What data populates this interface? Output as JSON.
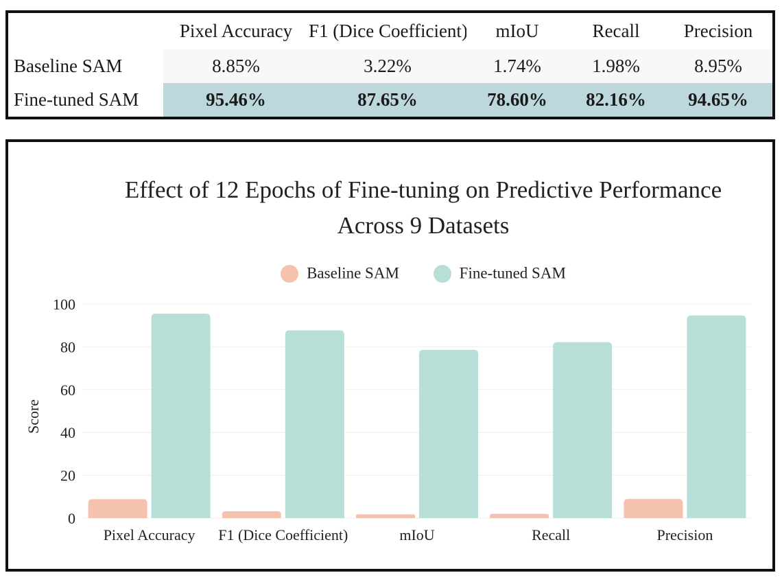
{
  "table": {
    "headers": [
      "",
      "Pixel Accuracy",
      "F1 (Dice Coefficient)",
      "mIoU",
      "Recall",
      "Precision"
    ],
    "rows": [
      {
        "label": "Baseline SAM",
        "values": [
          "8.85%",
          "3.22%",
          "1.74%",
          "1.98%",
          "8.95%"
        ]
      },
      {
        "label": "Fine-tuned SAM",
        "values": [
          "95.46%",
          "87.65%",
          "78.60%",
          "82.16%",
          "94.65%"
        ]
      }
    ],
    "colors": {
      "baseline_row": "#f7f8f9",
      "finetuned_row": "#bcd8dc"
    }
  },
  "chart_data": {
    "type": "bar",
    "title_lines": [
      "Effect of 12 Epochs of Fine-tuning on Predictive Performance",
      "Across 9 Datasets"
    ],
    "categories": [
      "Pixel Accuracy",
      "F1 (Dice Coefficient)",
      "mIoU",
      "Recall",
      "Precision"
    ],
    "series": [
      {
        "name": "Baseline SAM",
        "color": "#f5c3ad",
        "values": [
          8.85,
          3.22,
          1.74,
          1.98,
          8.95
        ]
      },
      {
        "name": "Fine-tuned SAM",
        "color": "#b7ded7",
        "values": [
          95.46,
          87.65,
          78.6,
          82.16,
          94.65
        ]
      }
    ],
    "xlabel": "",
    "ylabel": "Score",
    "ylim": [
      0,
      100
    ],
    "yticks": [
      "0",
      "20",
      "40",
      "60",
      "80",
      "100"
    ],
    "grid": true,
    "legend": "top-center",
    "colors": {
      "grid": "#eeeeee",
      "text": "#222222"
    }
  }
}
